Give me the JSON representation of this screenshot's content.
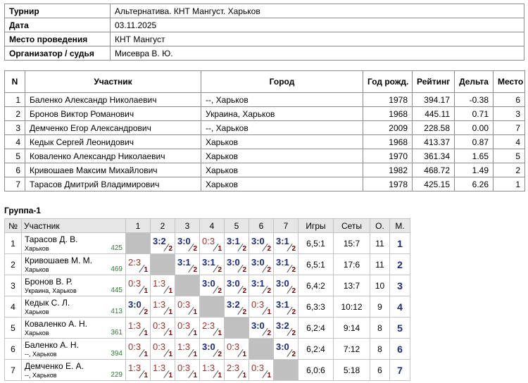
{
  "info": {
    "rows": [
      [
        "Турнир",
        "Альтернатива. КНТ Мангуст. Харьков"
      ],
      [
        "Дата",
        "03.11.2025"
      ],
      [
        "Место проведения",
        "КНТ Мангуст"
      ],
      [
        "Организатор / судья",
        "Мисевра В. Ю."
      ]
    ]
  },
  "participants": {
    "headers": [
      "N",
      "Участник",
      "Город",
      "Год рожд.",
      "Рейтинг",
      "Дельта",
      "Место"
    ],
    "rows": [
      [
        "1",
        "Баленко Александр Николаевич",
        "--, Харьков",
        "1978",
        "394.17",
        "-0.38",
        "6"
      ],
      [
        "2",
        "Бронов Виктор Романович",
        "Украина, Харьков",
        "1968",
        "445.11",
        "0.71",
        "3"
      ],
      [
        "3",
        "Демченко Егор Александрович",
        "--, Харьков",
        "2009",
        "228.58",
        "0.00",
        "7"
      ],
      [
        "4",
        "Кедык Сергей Леонидович",
        "Харьков",
        "1968",
        "413.37",
        "0.87",
        "4"
      ],
      [
        "5",
        "Коваленко Александр Николаевич",
        "Харьков",
        "1970",
        "361.34",
        "1.65",
        "5"
      ],
      [
        "6",
        "Кривошаев Максим Михайлович",
        "Харьков",
        "1982",
        "468.72",
        "1.49",
        "2"
      ],
      [
        "7",
        "Тарасов Дмитрий Владимирович",
        "Харьков",
        "1978",
        "425.15",
        "6.26",
        "1"
      ]
    ]
  },
  "group": {
    "title": "Группа-1",
    "headers": [
      "№",
      "Участник",
      "1",
      "2",
      "3",
      "4",
      "5",
      "6",
      "7",
      "Игры",
      "Сеты",
      "О.",
      "М."
    ],
    "rows": [
      {
        "n": "1",
        "name": "Тарасов Д. В.",
        "city": "Харьков",
        "rating": "425",
        "results": [
          null,
          {
            "score": "3:2",
            "pts": "2"
          },
          {
            "score": "3:0",
            "pts": "2"
          },
          {
            "score": "0:3",
            "pts": "1"
          },
          {
            "score": "3:1",
            "pts": "2"
          },
          {
            "score": "3:0",
            "pts": "2"
          },
          {
            "score": "3:1",
            "pts": "2"
          }
        ],
        "games": "6,5:1",
        "sets": "15:7",
        "points": "11",
        "place": "1"
      },
      {
        "n": "2",
        "name": "Кривошаев М. М.",
        "city": "Харьков",
        "rating": "469",
        "results": [
          {
            "score": "2:3",
            "pts": "1"
          },
          null,
          {
            "score": "3:1",
            "pts": "2"
          },
          {
            "score": "3:1",
            "pts": "2"
          },
          {
            "score": "3:0",
            "pts": "2"
          },
          {
            "score": "3:0",
            "pts": "2"
          },
          {
            "score": "3:1",
            "pts": "2"
          }
        ],
        "games": "6,5:1",
        "sets": "17:6",
        "points": "11",
        "place": "2"
      },
      {
        "n": "3",
        "name": "Бронов В. Р.",
        "city": "Украина, Харьков",
        "rating": "445",
        "results": [
          {
            "score": "0:3",
            "pts": "1"
          },
          {
            "score": "1:3",
            "pts": "1"
          },
          null,
          {
            "score": "3:0",
            "pts": "2"
          },
          {
            "score": "3:0",
            "pts": "2"
          },
          {
            "score": "3:1",
            "pts": "2"
          },
          {
            "score": "3:0",
            "pts": "2"
          }
        ],
        "games": "6,4:2",
        "sets": "13:7",
        "points": "10",
        "place": "3"
      },
      {
        "n": "4",
        "name": "Кедык С. Л.",
        "city": "Харьков",
        "rating": "413",
        "results": [
          {
            "score": "3:0",
            "pts": "2"
          },
          {
            "score": "1:3",
            "pts": "1"
          },
          {
            "score": "0:3",
            "pts": "1"
          },
          null,
          {
            "score": "3:2",
            "pts": "2"
          },
          {
            "score": "0:3",
            "pts": "1"
          },
          {
            "score": "3:1",
            "pts": "2"
          }
        ],
        "games": "6,3:3",
        "sets": "10:12",
        "points": "9",
        "place": "4"
      },
      {
        "n": "5",
        "name": "Коваленко А. Н.",
        "city": "Харьков",
        "rating": "361",
        "results": [
          {
            "score": "1:3",
            "pts": "1"
          },
          {
            "score": "0:3",
            "pts": "1"
          },
          {
            "score": "0:3",
            "pts": "1"
          },
          {
            "score": "2:3",
            "pts": "1"
          },
          null,
          {
            "score": "3:0",
            "pts": "2"
          },
          {
            "score": "3:2",
            "pts": "2"
          }
        ],
        "games": "6,2:4",
        "sets": "9:14",
        "points": "8",
        "place": "5"
      },
      {
        "n": "6",
        "name": "Баленко А. Н.",
        "city": "--, Харьков",
        "rating": "394",
        "results": [
          {
            "score": "0:3",
            "pts": "1"
          },
          {
            "score": "0:3",
            "pts": "1"
          },
          {
            "score": "1:3",
            "pts": "1"
          },
          {
            "score": "3:0",
            "pts": "2"
          },
          {
            "score": "0:3",
            "pts": "1"
          },
          null,
          {
            "score": "3:0",
            "pts": "2"
          }
        ],
        "games": "6,2:4",
        "sets": "7:12",
        "points": "8",
        "place": "6"
      },
      {
        "n": "7",
        "name": "Демченко Е. А.",
        "city": "--, Харьков",
        "rating": "229",
        "results": [
          {
            "score": "1:3",
            "pts": "1"
          },
          {
            "score": "1:3",
            "pts": "1"
          },
          {
            "score": "0:3",
            "pts": "1"
          },
          {
            "score": "1:3",
            "pts": "1"
          },
          {
            "score": "2:3",
            "pts": "1"
          },
          {
            "score": "0:3",
            "pts": "1"
          },
          null
        ],
        "games": "6,0:6",
        "sets": "5:18",
        "points": "6",
        "place": "7"
      }
    ]
  }
}
